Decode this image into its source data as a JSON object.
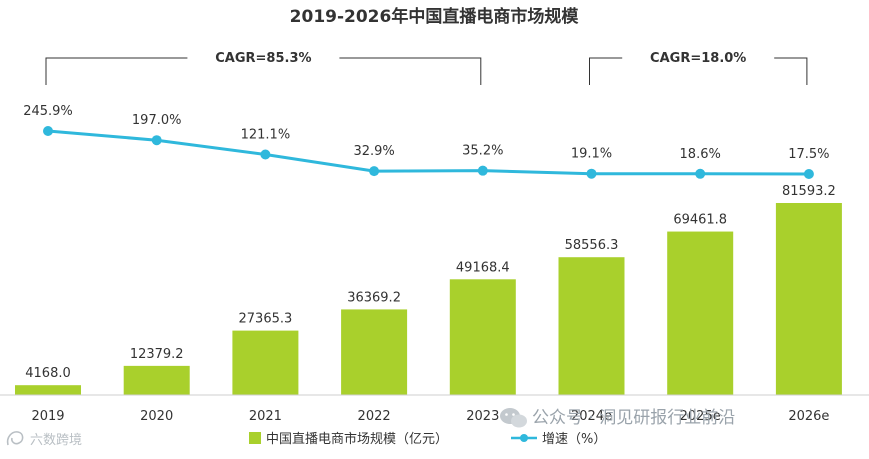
{
  "chart_data": {
    "type": "bar",
    "title": "2019-2026年中国直播电商市场规模",
    "categories": [
      "2019",
      "2020",
      "2021",
      "2022",
      "2023",
      "2024e",
      "2025e",
      "2026e"
    ],
    "series": [
      {
        "name": "中国直播电商市场规模（亿元）",
        "type": "bar",
        "color": "#a9d02c",
        "values": [
          4168.0,
          12379.2,
          27365.3,
          36369.2,
          49168.4,
          58556.3,
          69461.8,
          81593.2
        ],
        "labels": [
          "4168.0",
          "12379.2",
          "27365.3",
          "36369.2",
          "49168.4",
          "58556.3",
          "69461.8",
          "81593.2"
        ]
      },
      {
        "name": "增速（%）",
        "type": "line",
        "color": "#2fb8dc",
        "values": [
          245.9,
          197.0,
          121.1,
          32.9,
          35.2,
          19.1,
          18.6,
          17.5
        ],
        "labels": [
          "245.9%",
          "197.0%",
          "121.1%",
          "32.9%",
          "35.2%",
          "19.1%",
          "18.6%",
          "17.5%"
        ]
      }
    ],
    "annotations": [
      {
        "text": "CAGR=85.3%",
        "from": "2019",
        "to": "2023"
      },
      {
        "text": "CAGR=18.0%",
        "from": "2024e",
        "to": "2026e"
      }
    ],
    "legend_position": "bottom",
    "grid": false
  },
  "watermarks": {
    "right": "公众号 · 洞见研报行业前沿",
    "left": "六数跨境"
  },
  "icons": [
    "wechat-icon",
    "brand-logo-icon"
  ]
}
